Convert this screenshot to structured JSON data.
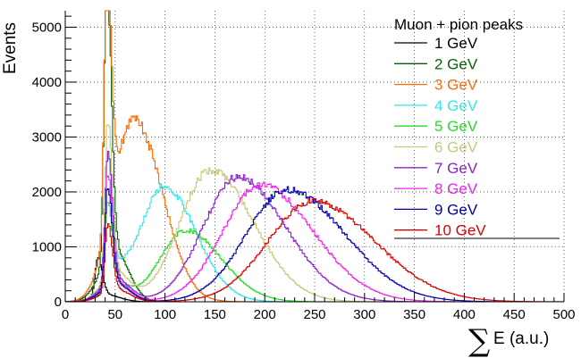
{
  "chart_data": {
    "type": "line",
    "title": "",
    "ylabel": "Events",
    "xlabel_symbol": "∑",
    "xlabel_text": "E (a.u.)",
    "xlim": [
      0,
      500
    ],
    "ylim": [
      0,
      5300
    ],
    "x_ticks": [
      0,
      50,
      100,
      150,
      200,
      250,
      300,
      350,
      400,
      450,
      500
    ],
    "y_ticks": [
      0,
      1000,
      2000,
      3000,
      4000,
      5000
    ],
    "grid": true,
    "legend": {
      "title": "Muon + pion peaks",
      "position": "top-right"
    },
    "series": [
      {
        "name": "1 GeV",
        "color": "#000000",
        "mip_peak": 700,
        "mip_x": 32,
        "hadron_peak": 0,
        "hadron_mean": 0,
        "hadron_sigma": 0
      },
      {
        "name": "2 GeV",
        "color": "#006400",
        "mip_peak": 5200,
        "mip_x": 41,
        "hadron_peak": 0,
        "hadron_mean": 0,
        "hadron_sigma": 0
      },
      {
        "name": "3 GeV",
        "color": "#ff6a00",
        "mip_peak": 4500,
        "mip_x": 41,
        "hadron_peak": 3100,
        "hadron_mean": 72,
        "hadron_sigma": 22
      },
      {
        "name": "4 GeV",
        "color": "#33e6e6",
        "mip_peak": 2250,
        "mip_x": 42,
        "hadron_peak": 2100,
        "hadron_mean": 98,
        "hadron_sigma": 27
      },
      {
        "name": "5 GeV",
        "color": "#22dd22",
        "mip_peak": 1600,
        "mip_x": 42,
        "hadron_peak": 1300,
        "hadron_mean": 120,
        "hadron_sigma": 30
      },
      {
        "name": "6 GeV",
        "color": "#c8c878",
        "mip_peak": 2850,
        "mip_x": 42,
        "hadron_peak": 2400,
        "hadron_mean": 145,
        "hadron_sigma": 36
      },
      {
        "name": "7 GeV",
        "color": "#8b22cc",
        "mip_peak": 2350,
        "mip_x": 42,
        "hadron_peak": 2270,
        "hadron_mean": 172,
        "hadron_sigma": 40
      },
      {
        "name": "8 GeV",
        "color": "#ee22ee",
        "mip_peak": 2000,
        "mip_x": 42,
        "hadron_peak": 2130,
        "hadron_mean": 195,
        "hadron_sigma": 44
      },
      {
        "name": "9 GeV",
        "color": "#0000aa",
        "mip_peak": 1800,
        "mip_x": 42,
        "hadron_peak": 2040,
        "hadron_mean": 222,
        "hadron_sigma": 48
      },
      {
        "name": "10 GeV",
        "color": "#dd0000",
        "mip_peak": 1250,
        "mip_x": 42,
        "hadron_peak": 1830,
        "hadron_mean": 247,
        "hadron_sigma": 52
      }
    ]
  }
}
